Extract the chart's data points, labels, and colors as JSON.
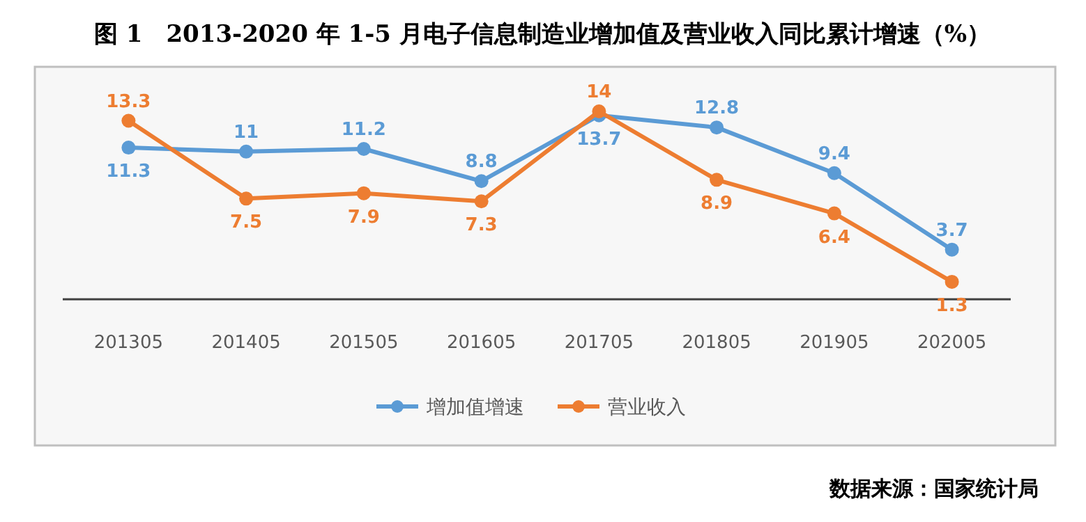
{
  "chart_data": {
    "type": "line",
    "title": "图 1　2013-2020 年 1-5 月电子信息制造业增加值及营业收入同比累计增速（%）",
    "categories": [
      "201305",
      "201405",
      "201505",
      "201605",
      "201705",
      "201805",
      "201905",
      "202005"
    ],
    "series": [
      {
        "name": "增加值增速",
        "color": "#5b9bd5",
        "values": [
          11.3,
          11,
          11.2,
          8.8,
          13.7,
          12.8,
          9.4,
          3.7
        ]
      },
      {
        "name": "营业收入",
        "color": "#ed7d31",
        "values": [
          13.3,
          7.5,
          7.9,
          7.3,
          14,
          8.9,
          6.4,
          1.3
        ]
      }
    ],
    "data_labels": true,
    "marker": "circle",
    "legend": "bottom",
    "tick_labels": "x",
    "annotations": [
      "数据来源：国家统计局"
    ]
  }
}
